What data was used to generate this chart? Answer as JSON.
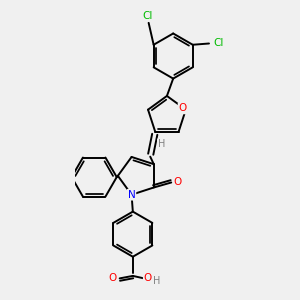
{
  "background_color": "#f0f0f0",
  "bond_color": "#000000",
  "bond_width": 1.4,
  "atom_colors": {
    "O": "#ff0000",
    "N": "#0000ff",
    "Cl": "#00bb00",
    "H": "#808080"
  },
  "font_size": 7.5
}
